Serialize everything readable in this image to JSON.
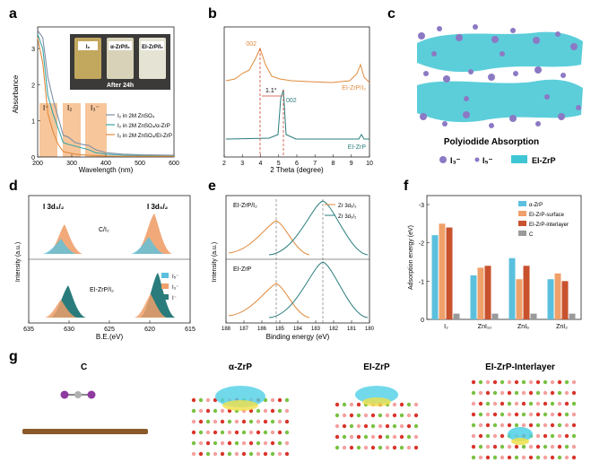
{
  "panels": {
    "a": {
      "letter": "a",
      "ylabel": "Absorbance",
      "xlabel": "Wavelength (nm)",
      "yticks": [
        "3",
        "2",
        "1",
        "0"
      ],
      "xticks": [
        "200",
        "300",
        "400",
        "500",
        "600"
      ],
      "photo_labels": [
        "I₂",
        "α-ZrP/I₂",
        "EI-ZrP/I₂"
      ],
      "photo_caption": "After  24h",
      "band_labels": [
        "I⁻",
        "I₂",
        "I₃⁻"
      ],
      "legend": [
        "I₂ in 2M ZnSO₄",
        "I₂ in 2M ZnSO₄/α-ZrP",
        "I₂ in 2M ZnSO₄/EI-ZrP"
      ],
      "series_colors": [
        "#7f8fa6",
        "#3aa6a6",
        "#e08a3c"
      ]
    },
    "b": {
      "letter": "b",
      "xlabel": "2 Theta (degree)",
      "xticks": [
        "2",
        "3",
        "4",
        "5",
        "6",
        "7",
        "8",
        "9",
        "10"
      ],
      "peak_top": "002",
      "peak_bottom": "002",
      "shift": "1.1°",
      "label_top": "EI-ZrP/I₂",
      "label_bottom": "EI-ZrP"
    },
    "c": {
      "letter": "c",
      "title": "Polyiodide Absorption",
      "legend": [
        "I₃⁻",
        "I₅⁻",
        "EI-ZrP"
      ]
    },
    "d": {
      "letter": "d",
      "ylabel": "Intensity (a.u.)",
      "xlabel": "B.E.(eV)",
      "xticks": [
        "635",
        "630",
        "625",
        "620",
        "615"
      ],
      "orbital_left": "I 3d₃/₂",
      "orbital_right": "I 3d₅/₂",
      "label_top": "C/I₂",
      "label_bottom": "EI-ZrP/I₂",
      "legend": [
        "I₅⁻",
        "I₃⁻",
        "I⁻"
      ]
    },
    "e": {
      "letter": "e",
      "ylabel": "Intensity (a.u.)",
      "xlabel": "Binding energy (eV)",
      "xticks": [
        "188",
        "187",
        "186",
        "185",
        "184",
        "183",
        "182",
        "181",
        "180"
      ],
      "label_top": "EI-ZrP/I₂",
      "label_bottom": "EI-ZrP",
      "legend": [
        "Zr 3d₅/₂",
        "Zr 3d₃/₂"
      ]
    },
    "f": {
      "letter": "f",
      "ylabel": "Adsorption energy (eV)",
      "yticks": [
        "-3",
        "-2",
        "-1",
        "0"
      ],
      "legend": [
        "α-ZrP",
        "EI-ZrP-surface",
        "EI-ZrP-interlayer",
        "C"
      ]
    },
    "g": {
      "letter": "g",
      "labels": [
        "C",
        "α-ZrP",
        "EI-ZrP",
        "EI-ZrP-Interlayer"
      ]
    }
  },
  "chart_data": [
    {
      "type": "bar",
      "panel": "f",
      "ylabel": "Adsorption energy (eV)",
      "ylim": [
        0,
        -3
      ],
      "categories": [
        "I₂",
        "ZnI₁₀",
        "ZnI₆",
        "ZnI₂"
      ],
      "series": [
        {
          "name": "α-ZrP",
          "values": [
            -2.2,
            -1.15,
            -1.6,
            -1.05
          ]
        },
        {
          "name": "EI-ZrP-surface",
          "values": [
            -2.5,
            -1.35,
            -1.05,
            -1.2
          ]
        },
        {
          "name": "EI-ZrP-interlayer",
          "values": [
            -2.4,
            -1.4,
            -1.4,
            -1.0
          ]
        },
        {
          "name": "C",
          "values": [
            -0.15,
            -0.15,
            -0.15,
            -0.15
          ]
        }
      ],
      "colors": [
        "#5bc0de",
        "#f0a06a",
        "#c8522e",
        "#9a9a9a"
      ]
    },
    {
      "type": "line",
      "panel": "a",
      "xlabel": "Wavelength (nm)",
      "ylabel": "Absorbance",
      "xlim": [
        200,
        600
      ],
      "ylim": [
        0,
        3.6
      ],
      "series": [
        {
          "name": "I₂ in 2M ZnSO₄",
          "x": [
            200,
            215,
            230,
            245,
            260,
            275,
            290,
            310,
            330,
            350,
            370,
            400,
            450,
            500,
            600
          ],
          "y": [
            3.5,
            3.3,
            2.2,
            1.6,
            1.1,
            0.6,
            0.55,
            0.4,
            0.35,
            0.32,
            0.2,
            0.12,
            0.08,
            0.06,
            0.05
          ]
        },
        {
          "name": "I₂ in 2M ZnSO₄/α-ZrP",
          "x": [
            200,
            215,
            230,
            245,
            260,
            275,
            290,
            310,
            330,
            350,
            370,
            400,
            450,
            500,
            600
          ],
          "y": [
            3.4,
            3.0,
            1.7,
            1.2,
            0.8,
            0.4,
            0.35,
            0.3,
            0.25,
            0.2,
            0.12,
            0.08,
            0.05,
            0.04,
            0.03
          ]
        },
        {
          "name": "I₂ in 2M ZnSO₄/EI-ZrP",
          "x": [
            200,
            215,
            230,
            245,
            260,
            275,
            290,
            310,
            330,
            350,
            370,
            400,
            450,
            500,
            600
          ],
          "y": [
            3.3,
            2.6,
            1.2,
            0.7,
            0.35,
            0.15,
            0.12,
            0.08,
            0.06,
            0.05,
            0.04,
            0.03,
            0.02,
            0.02,
            0.02
          ]
        }
      ]
    }
  ]
}
